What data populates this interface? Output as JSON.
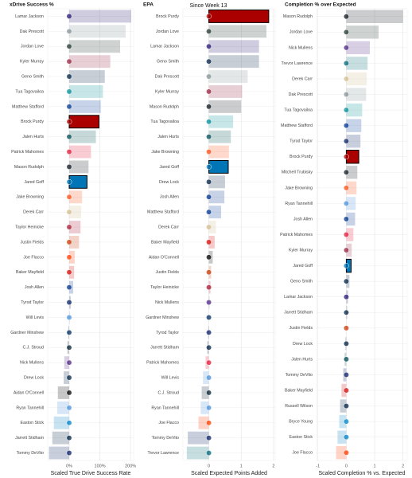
{
  "chart_data": [
    {
      "type": "bar",
      "orientation": "horizontal",
      "title": "xDrive Success %",
      "x_label": "Scaled True Drive Success Rate",
      "categories": [
        "Lamar Jackson",
        "Dak Prescott",
        "Jordan Love",
        "Kyler Murray",
        "Geno Smith",
        "Tua Tagovailoa",
        "Matthew Stafford",
        "Brock Purdy",
        "Jalen Hurts",
        "Patrick Mahomes",
        "Mason Rudolph",
        "Jared Goff",
        "Jake Browning",
        "Derek Carr",
        "Taylor Heinicke",
        "Justin Fields",
        "Joe Flacco",
        "Baker Mayfield",
        "Josh Allen",
        "Tyrod Taylor",
        "Will Levis",
        "Gardner Minshew",
        "C.J. Stroud",
        "Nick Mullens",
        "Drew Lock",
        "Aidan O'Connell",
        "Ryan Tannehill",
        "Easton Stick",
        "Jarrett Stidham",
        "Tommy DeVito"
      ],
      "values": [
        202,
        184,
        166,
        134,
        116,
        110,
        103,
        97,
        87,
        71,
        63,
        58,
        42,
        39,
        37,
        32,
        18,
        16,
        13,
        5,
        2,
        -3,
        -6,
        -16,
        -18,
        -37,
        -39,
        -50,
        -55,
        -66
      ],
      "colors": [
        "#241773",
        "#869397",
        "#203731",
        "#97233F",
        "#002244",
        "#008E97",
        "#003594",
        "#AA0000",
        "#004C54",
        "#E31837",
        "#101820",
        "#0076B6",
        "#FB4F14",
        "#D3BC8D",
        "#A71930",
        "#C83803",
        "#FF3C00",
        "#D50A0A",
        "#00338D",
        "#0B2265",
        "#4B92DB",
        "#002C5F",
        "#03202F",
        "#4F2683",
        "#002244",
        "#000000",
        "#4B92DB",
        "#0080C6",
        "#002244",
        "#0B2265"
      ],
      "outlined": [
        7,
        11
      ],
      "xlim": [
        -70,
        210
      ],
      "xticks": [
        {
          "value": 0,
          "label": "0%"
        },
        {
          "value": 100,
          "label": "100%"
        },
        {
          "value": 200,
          "label": "200%"
        }
      ],
      "grid": true
    },
    {
      "type": "bar",
      "orientation": "horizontal",
      "title": "EPA",
      "subtitle": "Since Week 13",
      "x_label": "Scaled Expected Points Added",
      "categories": [
        "Brock Purdy",
        "Jordan Love",
        "Lamar Jackson",
        "Geno Smith",
        "Dak Prescott",
        "Kyler Murray",
        "Mason Rudolph",
        "Tua Tagovailoa",
        "Jalen Hurts",
        "Jake Browning",
        "Jared Goff",
        "Drew Lock",
        "Josh Allen",
        "Matthew Stafford",
        "Derek Carr",
        "Baker Mayfield",
        "Aidan O'Connell",
        "Justin Fields",
        "Taylor Heinicke",
        "Nick Mullens",
        "Gardner Minshew",
        "Tyrod Taylor",
        "Jarrett Stidham",
        "Patrick Mahomes",
        "Will Levis",
        "C.J. Stroud",
        "Ryan Tannehill",
        "Joe Flacco",
        "Tommy DeVito",
        "Trevor Lawrence"
      ],
      "values": [
        1.85,
        1.78,
        1.55,
        1.55,
        1.2,
        1.03,
        1.0,
        0.75,
        0.68,
        0.62,
        0.6,
        0.5,
        0.48,
        0.38,
        0.22,
        0.18,
        0.12,
        0.07,
        0.05,
        0.02,
        0.0,
        -0.02,
        -0.05,
        -0.1,
        -0.18,
        -0.22,
        -0.25,
        -0.32,
        -0.65,
        -0.68
      ],
      "colors": [
        "#AA0000",
        "#203731",
        "#241773",
        "#002244",
        "#869397",
        "#97233F",
        "#101820",
        "#008E97",
        "#004C54",
        "#FB4F14",
        "#0076B6",
        "#002244",
        "#00338D",
        "#003594",
        "#D3BC8D",
        "#D50A0A",
        "#000000",
        "#C83803",
        "#A71930",
        "#4F2683",
        "#002C5F",
        "#0B2265",
        "#002244",
        "#E31837",
        "#4B92DB",
        "#03202F",
        "#4B92DB",
        "#FF3C00",
        "#0B2265",
        "#006778"
      ],
      "outlined": [
        0,
        10
      ],
      "xlim": [
        -0.8,
        2.05
      ],
      "xticks": [
        0,
        1,
        2
      ],
      "grid": true
    },
    {
      "type": "bar",
      "orientation": "horizontal",
      "title": "Completion % over Expected",
      "x_label": "Scaled Completion % vs. Expected",
      "categories": [
        "Mason Rudolph",
        "Jordan Love",
        "Nick Mullens",
        "Trevor Lawrence",
        "Derek Carr",
        "Dak Prescott",
        "Tua Tagovailoa",
        "Matthew Stafford",
        "Tyrod Taylor",
        "Brock Purdy",
        "Mitchell Trubisky",
        "Jake Browning",
        "Ryan Tannehill",
        "Josh Allen",
        "Patrick Mahomes",
        "Kyler Murray",
        "Jared Goff",
        "Geno Smith",
        "Lamar Jackson",
        "Jarrett Stidham",
        "Justin Fields",
        "Drew Lock",
        "Jalen Hurts",
        "Tommy DeVito",
        "Baker Mayfield",
        "Russell Wilson",
        "Bryce Young",
        "Easton Stick",
        "Joe Flacco"
      ],
      "values": [
        2.0,
        1.14,
        0.83,
        0.75,
        0.72,
        0.7,
        0.56,
        0.53,
        0.5,
        0.44,
        0.39,
        0.36,
        0.33,
        0.31,
        0.25,
        0.19,
        0.17,
        0.11,
        0.06,
        0.03,
        0.0,
        -0.03,
        -0.06,
        -0.11,
        -0.17,
        -0.22,
        -0.25,
        -0.31,
        -0.36
      ],
      "colors": [
        "#101820",
        "#203731",
        "#4F2683",
        "#006778",
        "#D3BC8D",
        "#869397",
        "#008E97",
        "#003594",
        "#0B2265",
        "#AA0000",
        "#101820",
        "#FB4F14",
        "#4B92DB",
        "#00338D",
        "#E31837",
        "#97233F",
        "#0076B6",
        "#002244",
        "#241773",
        "#002244",
        "#C83803",
        "#002244",
        "#004C54",
        "#0B2265",
        "#D50A0A",
        "#002244",
        "#0085CA",
        "#0080C6",
        "#FF3C00"
      ],
      "outlined": [
        9,
        16
      ],
      "xlim": [
        -1.05,
        2.15
      ],
      "xticks": [
        -1,
        0,
        1,
        2
      ],
      "grid": true
    }
  ]
}
